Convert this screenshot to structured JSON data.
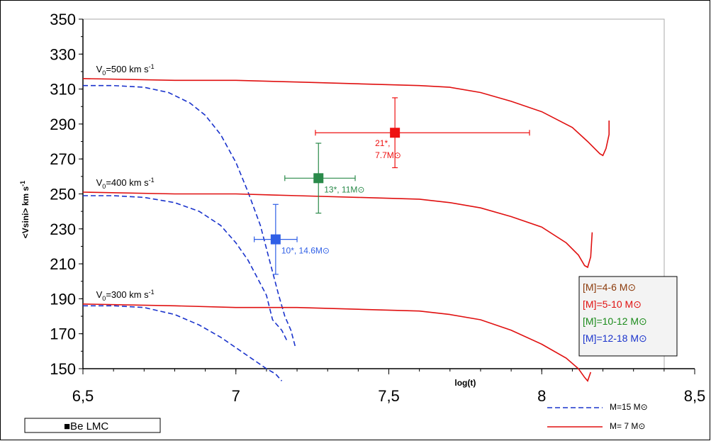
{
  "chart_data": {
    "type": "line",
    "xlabel": "log(t)",
    "ylabel": "<Vsini> km s",
    "ylabel_sup": "-1",
    "xlim": [
      6.5,
      8.5
    ],
    "ylim": [
      150,
      350
    ],
    "x_ticks": [
      "6,5",
      "7",
      "7,5",
      "8",
      "8,5"
    ],
    "x_tick_values": [
      6.5,
      7,
      7.5,
      8,
      8.5
    ],
    "y_ticks": [
      150,
      170,
      190,
      210,
      230,
      250,
      270,
      290,
      310,
      330,
      350
    ],
    "grid": false,
    "series": [
      {
        "name": "M=15 M⊙",
        "color": "#1a33cc",
        "dash": true,
        "curves": [
          {
            "x": [
              6.5,
              6.6,
              6.7,
              6.78,
              6.85,
              6.9,
              6.95,
              7.0,
              7.04,
              7.08,
              7.11,
              7.14,
              7.16,
              7.18,
              7.195
            ],
            "y": [
              312,
              312,
              311,
              308,
              302,
              295,
              284,
              268,
              251,
              232,
              212,
              192,
              180,
              172,
              162
            ]
          },
          {
            "x": [
              6.5,
              6.6,
              6.7,
              6.8,
              6.88,
              6.95,
              7.0,
              7.04,
              7.07,
              7.1,
              7.12,
              7.15,
              7.17
            ],
            "y": [
              249,
              249,
              248,
              245,
              240,
              232,
              222,
              212,
              202,
              192,
              178,
              172,
              165
            ]
          },
          {
            "x": [
              6.5,
              6.6,
              6.7,
              6.8,
              6.88,
              6.95,
              7.0,
              7.05,
              7.1,
              7.13,
              7.15
            ],
            "y": [
              186,
              186,
              185,
              181,
              175,
              168,
              162,
              156,
              150,
              147,
              143
            ]
          }
        ]
      },
      {
        "name": "M= 7  M⊙",
        "color": "#e01010",
        "dash": false,
        "curves": [
          {
            "x": [
              6.5,
              6.8,
              7.0,
              7.2,
              7.4,
              7.6,
              7.7,
              7.8,
              7.9,
              8.0,
              8.1,
              8.15,
              8.19,
              8.2,
              8.21,
              8.22,
              8.22
            ],
            "y": [
              316,
              315,
              315,
              314,
              313,
              312,
              311,
              308,
              303,
              297,
              288,
              280,
              273,
              272,
              276,
              284,
              292
            ]
          },
          {
            "x": [
              6.5,
              6.8,
              7.0,
              7.2,
              7.4,
              7.6,
              7.7,
              7.8,
              7.9,
              8.0,
              8.08,
              8.12,
              8.14,
              8.15,
              8.16,
              8.165
            ],
            "y": [
              251,
              250,
              250,
              249,
              248,
              247,
              245,
              242,
              237,
              231,
              222,
              215,
              209,
              208,
              214,
              228
            ]
          },
          {
            "x": [
              6.5,
              6.8,
              7.0,
              7.2,
              7.4,
              7.6,
              7.7,
              7.8,
              7.9,
              8.0,
              8.08,
              8.12,
              8.14,
              8.15,
              8.16
            ],
            "y": [
              187,
              186,
              185,
              185,
              184,
              183,
              181,
              178,
              172,
              164,
              156,
              150,
              145,
              143,
              148
            ]
          }
        ]
      }
    ],
    "annotations": [
      {
        "text": "V",
        "sub": "0",
        "rest": "=500 km s",
        "sup": "-1",
        "x": 6.52,
        "y": 318
      },
      {
        "text": "V",
        "sub": "0",
        "rest": "=400 km s",
        "sup": "-1",
        "x": 6.52,
        "y": 253
      },
      {
        "text": "V",
        "sub": "0",
        "rest": "=300 km s",
        "sup": "-1",
        "x": 6.52,
        "y": 189
      }
    ],
    "points": [
      {
        "x": 7.52,
        "y": 285,
        "xerr": [
          7.26,
          7.96
        ],
        "yerr": [
          265,
          305
        ],
        "color": "#ee1111",
        "label1": "21*,",
        "label2": "7.7M⊙"
      },
      {
        "x": 7.27,
        "y": 259,
        "xerr": [
          7.16,
          7.39
        ],
        "yerr": [
          239,
          279
        ],
        "color": "#2a8a4a",
        "label1": "13*,  11M⊙",
        "label2": ""
      },
      {
        "x": 7.13,
        "y": 224,
        "xerr": [
          7.06,
          7.2
        ],
        "yerr": [
          204,
          244
        ],
        "color": "#2f5fe6",
        "label1": "10*,  14.6M⊙",
        "label2": ""
      }
    ],
    "legend": {
      "placement": "bottom-right",
      "entries": [
        {
          "text": "[M]=4-6 M⊙",
          "color": "#8b3a0a"
        },
        {
          "text": "[M]=5-10 M⊙",
          "color": "#e01010"
        },
        {
          "text": "[M]=10-12 M⊙",
          "color": "#1a8a1a"
        },
        {
          "text": "[M]=12-18 M⊙",
          "color": "#1a33cc"
        }
      ],
      "bottom_box": "■Be LMC"
    }
  }
}
